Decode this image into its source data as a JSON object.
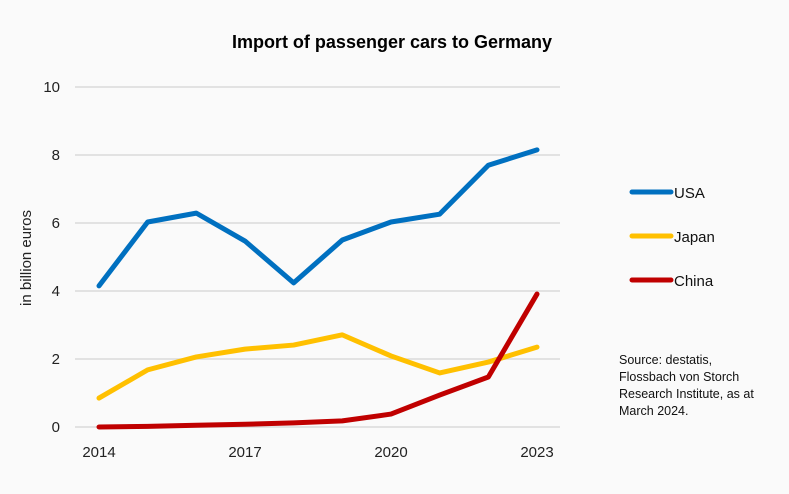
{
  "chart_data": {
    "type": "line",
    "title": "Import of passenger cars to Germany",
    "xlabel": "",
    "ylabel": "in billion euros",
    "x": [
      2014,
      2015,
      2016,
      2017,
      2018,
      2019,
      2020,
      2021,
      2022,
      2023
    ],
    "x_tick_labels": [
      "2014",
      "2017",
      "2020",
      "2023"
    ],
    "x_tick_values": [
      2014,
      2017,
      2020,
      2023
    ],
    "ylim": [
      0,
      10
    ],
    "y_ticks": [
      0,
      2,
      4,
      6,
      8,
      10
    ],
    "grid": true,
    "legend_position": "right",
    "series": [
      {
        "name": "USA",
        "color": "#0070c0",
        "values": [
          4.15,
          6.03,
          6.29,
          5.47,
          4.24,
          5.5,
          6.03,
          6.26,
          7.7,
          8.15
        ]
      },
      {
        "name": "Japan",
        "color": "#ffc000",
        "values": [
          0.85,
          1.68,
          2.06,
          2.29,
          2.41,
          2.71,
          2.09,
          1.59,
          1.91,
          2.35
        ]
      },
      {
        "name": "China",
        "color": "#c00000",
        "values": [
          0.0,
          0.02,
          0.05,
          0.08,
          0.12,
          0.18,
          0.38,
          0.94,
          1.47,
          3.91
        ]
      }
    ],
    "annotations": [
      "Source: destatis, Flossbach von Storch Research Institute, as at March 2024."
    ]
  },
  "source_note": "Source: destatis, Flossbach von Storch Research Institute, as at March 2024."
}
